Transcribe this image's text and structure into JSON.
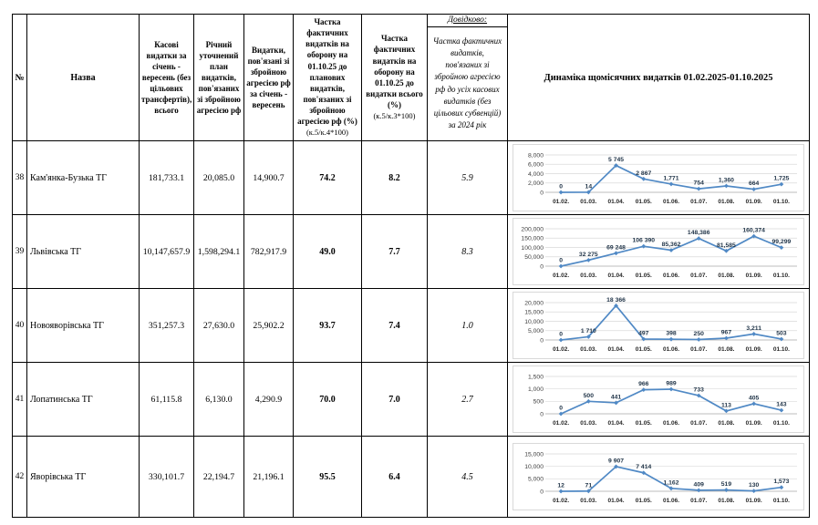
{
  "table": {
    "headers": {
      "num": "№",
      "name": "Назва",
      "cash": "Касові видатки за січень - вересень (без цільових трансфертів), всього",
      "plan": "Річний уточнений план видатків, пов'язаних зі збройною агресією рф",
      "expend": "Видатки, пов'язані зі збройною агресією рф за січень - вересень",
      "share_plan_main": "Частка фактичних видатків на оборону на 01.10.25 до планових видатків, пов'язаних зі збройною агресією рф (%)",
      "share_plan_formula": "(к.5/к.4*100)",
      "share_total_main": "Частка фактичних видатків на оборону на 01.10.25 до видатки всього (%)",
      "share_total_formula": "(к.5/к.3*100)",
      "reference_title": "Довідково:",
      "reference_note": "Частка фактичних видатків, пов'язаних зі збройною агресією рф до усіх касових видатків (без цільових субвенцій) за 2024 рік",
      "dynamics": "Динаміка щомісячних видатків 01.02.2025-01.10.2025"
    },
    "rows": [
      {
        "num": "38",
        "name": "Кам'янка-Бузька ТГ",
        "cash": "181,733.1",
        "plan": "20,085.0",
        "expend": "14,900.7",
        "share_plan": "74.2",
        "share_total": "8.2",
        "reference": "5.9"
      },
      {
        "num": "39",
        "name": "Львівська ТГ",
        "cash": "10,147,657.9",
        "plan": "1,598,294.1",
        "expend": "782,917.9",
        "share_plan": "49.0",
        "share_total": "7.7",
        "reference": "8.3"
      },
      {
        "num": "40",
        "name": "Новояворівська ТГ",
        "cash": "351,257.3",
        "plan": "27,630.0",
        "expend": "25,902.2",
        "share_plan": "93.7",
        "share_total": "7.4",
        "reference": "1.0"
      },
      {
        "num": "41",
        "name": "Лопатинська ТГ",
        "cash": "61,115.8",
        "plan": "6,130.0",
        "expend": "4,290.9",
        "share_plan": "70.0",
        "share_total": "7.0",
        "reference": "2.7"
      },
      {
        "num": "42",
        "name": "Яворівська ТГ",
        "cash": "330,101.7",
        "plan": "22,194.7",
        "expend": "21,196.1",
        "share_plan": "95.5",
        "share_total": "6.4",
        "reference": "4.5"
      }
    ]
  },
  "chart_data": [
    {
      "row": "38",
      "type": "line",
      "title": "Динаміка щомісячних видатків 01.02.2025-01.10.2025",
      "x": [
        "01.02.",
        "01.03.",
        "01.04.",
        "01.05.",
        "01.06.",
        "01.07.",
        "01.08.",
        "01.09.",
        "01.10."
      ],
      "values": [
        0,
        14,
        5745,
        2867,
        1771,
        754,
        1360,
        664,
        1725
      ],
      "labels": [
        "0",
        "14",
        "5 745",
        "2 867",
        "1,771",
        "754",
        "1,360",
        "664",
        "1,725"
      ],
      "ymax": 8000,
      "yticks": [
        {
          "v": 0,
          "label": "0"
        },
        {
          "v": 2000,
          "label": "2,000"
        },
        {
          "v": 4000,
          "label": "4,000"
        },
        {
          "v": 6000,
          "label": "6,000"
        },
        {
          "v": 8000,
          "label": "8,000"
        }
      ],
      "line_color": "#5089C5",
      "grid": true,
      "legend": false
    },
    {
      "row": "39",
      "type": "line",
      "title": "Динаміка щомісячних видатків 01.02.2025-01.10.2025",
      "x": [
        "01.02.",
        "01.03.",
        "01.04.",
        "01.05.",
        "01.06.",
        "01.07.",
        "01.08.",
        "01.09.",
        "01.10."
      ],
      "values": [
        0,
        32275,
        69248,
        106390,
        85362,
        148386,
        81585,
        160374,
        99299
      ],
      "labels": [
        "0",
        "32 275",
        "69 248",
        "106 390",
        "85,362",
        "148,386",
        "81,585",
        "160,374",
        "99,299"
      ],
      "ymax": 200000,
      "yticks": [
        {
          "v": 0,
          "label": "0"
        },
        {
          "v": 50000,
          "label": "50,000"
        },
        {
          "v": 100000,
          "label": "100,000"
        },
        {
          "v": 150000,
          "label": "150,000"
        },
        {
          "v": 200000,
          "label": "200,000"
        }
      ],
      "line_color": "#5089C5",
      "grid": true,
      "legend": false
    },
    {
      "row": "40",
      "type": "line",
      "title": "Динаміка щомісячних видатків 01.02.2025-01.10.2025",
      "x": [
        "01.02.",
        "01.03.",
        "01.04.",
        "01.05.",
        "01.06.",
        "01.07.",
        "01.08.",
        "01.09.",
        "01.10."
      ],
      "values": [
        0,
        1710,
        18366,
        497,
        398,
        250,
        967,
        3211,
        503
      ],
      "labels": [
        "0",
        "1 710",
        "18 366",
        "497",
        "398",
        "250",
        "967",
        "3,211",
        "503"
      ],
      "ymax": 20000,
      "yticks": [
        {
          "v": 0,
          "label": "0"
        },
        {
          "v": 5000,
          "label": "5,000"
        },
        {
          "v": 10000,
          "label": "10,000"
        },
        {
          "v": 15000,
          "label": "15,000"
        },
        {
          "v": 20000,
          "label": "20,000"
        }
      ],
      "line_color": "#5089C5",
      "grid": true,
      "legend": false
    },
    {
      "row": "41",
      "type": "line",
      "title": "Динаміка щомісячних видатків 01.02.2025-01.10.2025",
      "x": [
        "01.02.",
        "01.03.",
        "01.04.",
        "01.05.",
        "01.06.",
        "01.07.",
        "01.08.",
        "01.09.",
        "01.10."
      ],
      "values": [
        0,
        500,
        441,
        966,
        989,
        733,
        113,
        405,
        143
      ],
      "labels": [
        "0",
        "500",
        "441",
        "966",
        "989",
        "733",
        "113",
        "405",
        "143"
      ],
      "ymax": 1500,
      "yticks": [
        {
          "v": 0,
          "label": "0"
        },
        {
          "v": 500,
          "label": "500"
        },
        {
          "v": 1000,
          "label": "1,000"
        },
        {
          "v": 1500,
          "label": "1,500"
        }
      ],
      "line_color": "#5089C5",
      "grid": true,
      "legend": false
    },
    {
      "row": "42",
      "type": "line",
      "title": "Динаміка щомісячних видатків 01.02.2025-01.10.2025",
      "x": [
        "01.02.",
        "01.03.",
        "01.04.",
        "01.05.",
        "01.06.",
        "01.07.",
        "01.08.",
        "01.09.",
        "01.10."
      ],
      "values": [
        12,
        71,
        9907,
        7414,
        1162,
        409,
        519,
        130,
        1573
      ],
      "labels": [
        "12",
        "71",
        "9 907",
        "7 414",
        "1,162",
        "409",
        "519",
        "130",
        "1,573"
      ],
      "ymax": 15000,
      "yticks": [
        {
          "v": 0,
          "label": "0"
        },
        {
          "v": 5000,
          "label": "5,000"
        },
        {
          "v": 10000,
          "label": "10,000"
        },
        {
          "v": 15000,
          "label": "15,000"
        }
      ],
      "line_color": "#5089C5",
      "grid": true,
      "legend": false
    }
  ]
}
